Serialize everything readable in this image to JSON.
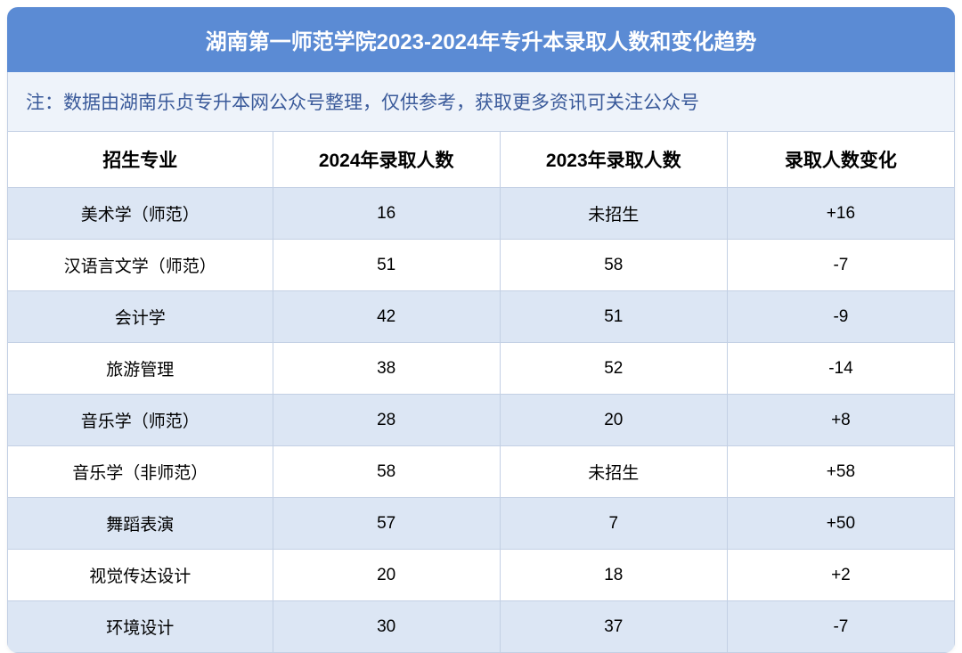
{
  "title": "湖南第一师范学院2023-2024年专升本录取人数和变化趋势",
  "note": "注：数据由湖南乐贞专升本网公众号整理，仅供参考，获取更多资讯可关注公众号",
  "columns": [
    "招生专业",
    "2024年录取人数",
    "2023年录取人数",
    "录取人数变化"
  ],
  "rows": [
    {
      "major": "美术学（师范）",
      "y2024": "16",
      "y2023": "未招生",
      "diff": "+16"
    },
    {
      "major": "汉语言文学（师范）",
      "y2024": "51",
      "y2023": "58",
      "diff": "-7"
    },
    {
      "major": "会计学",
      "y2024": "42",
      "y2023": "51",
      "diff": "-9"
    },
    {
      "major": "旅游管理",
      "y2024": "38",
      "y2023": "52",
      "diff": "-14"
    },
    {
      "major": "音乐学（师范）",
      "y2024": "28",
      "y2023": "20",
      "diff": "+8"
    },
    {
      "major": "音乐学（非师范）",
      "y2024": "58",
      "y2023": "未招生",
      "diff": "+58"
    },
    {
      "major": "舞蹈表演",
      "y2024": "57",
      "y2023": "7",
      "diff": "+50"
    },
    {
      "major": "视觉传达设计",
      "y2024": "20",
      "y2023": "18",
      "diff": "+2"
    },
    {
      "major": "环境设计",
      "y2024": "30",
      "y2023": "37",
      "diff": "-7"
    }
  ],
  "styling": {
    "title_bg": "#5b8bd4",
    "title_color": "#ffffff",
    "note_bg": "#eef3fa",
    "note_color": "#3a5a9a",
    "border_color": "#c3d0e4",
    "row_odd_bg": "#dce6f4",
    "row_even_bg": "#ffffff",
    "title_fontsize": 24,
    "note_fontsize": 21,
    "header_fontsize": 21,
    "cell_fontsize": 19
  }
}
